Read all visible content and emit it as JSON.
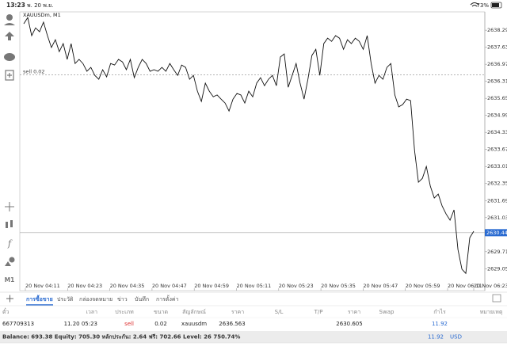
{
  "status_bar": {
    "time": "13:23",
    "date": "พ. 20 พ.ย.",
    "battery": "73%"
  },
  "chart_data": {
    "type": "line",
    "title": "XAUUSDm, M1",
    "xtick_labels": [
      "20 Nov 04:11",
      "20 Nov 04:23",
      "20 Nov 04:35",
      "20 Nov 04:47",
      "20 Nov 04:59",
      "20 Nov 05:11",
      "20 Nov 05:23",
      "20 Nov 05:35",
      "20 Nov 05:47",
      "20 Nov 05:59",
      "20 Nov 06:11",
      "20 Nov 06:23"
    ],
    "series": [
      {
        "name": "XAUUSDm",
        "color": "#111111",
        "values": [
          2638.54,
          2638.78,
          2638.08,
          2638.38,
          2638.23,
          2638.6,
          2638.08,
          2637.62,
          2637.92,
          2637.46,
          2637.77,
          2637.16,
          2637.77,
          2637.0,
          2637.16,
          2637.0,
          2636.7,
          2636.85,
          2636.54,
          2636.39,
          2636.76,
          2636.48,
          2637.0,
          2636.94,
          2637.16,
          2637.06,
          2636.76,
          2637.16,
          2636.45,
          2636.85,
          2637.16,
          2637.0,
          2636.7,
          2636.76,
          2636.7,
          2636.85,
          2636.7,
          2637.0,
          2636.76,
          2636.54,
          2636.94,
          2636.85,
          2636.39,
          2636.54,
          2635.93,
          2635.53,
          2636.24,
          2635.93,
          2635.71,
          2635.78,
          2635.62,
          2635.47,
          2635.16,
          2635.62,
          2635.84,
          2635.78,
          2635.47,
          2635.93,
          2635.71,
          2636.24,
          2636.45,
          2636.14,
          2636.39,
          2636.54,
          2636.14,
          2637.25,
          2637.37,
          2636.08,
          2636.54,
          2637.0,
          2636.24,
          2635.62,
          2636.39,
          2637.31,
          2637.55,
          2636.54,
          2637.77,
          2637.98,
          2637.86,
          2638.08,
          2637.98,
          2637.55,
          2637.92,
          2637.77,
          2637.98,
          2637.86,
          2637.55,
          2638.08,
          2637.0,
          2636.24,
          2636.54,
          2636.39,
          2636.85,
          2637.0,
          2635.78,
          2635.32,
          2635.41,
          2635.62,
          2635.56,
          2633.63,
          2632.4,
          2632.55,
          2633.01,
          2632.25,
          2631.79,
          2631.94,
          2631.48,
          2631.17,
          2630.93,
          2631.33,
          2629.79,
          2629.03,
          2628.87,
          2630.25,
          2630.5
        ]
      }
    ],
    "ylim": [
      2628.2,
      2639.0
    ],
    "yticks": [
      {
        "value": 2638.29,
        "label": "2638.290"
      },
      {
        "value": 2637.63,
        "label": "2637.630"
      },
      {
        "value": 2636.97,
        "label": "2636.970"
      },
      {
        "value": 2636.31,
        "label": "2636.310"
      },
      {
        "value": 2635.65,
        "label": "2635.650"
      },
      {
        "value": 2634.99,
        "label": "2634.990"
      },
      {
        "value": 2634.33,
        "label": "2634.330"
      },
      {
        "value": 2633.67,
        "label": "2633.670"
      },
      {
        "value": 2633.01,
        "label": "2633.010"
      },
      {
        "value": 2632.35,
        "label": "2632.350"
      },
      {
        "value": 2631.69,
        "label": "2631.690"
      },
      {
        "value": 2631.03,
        "label": "2631.030"
      },
      {
        "value": 2629.71,
        "label": "2629.710"
      },
      {
        "value": 2629.05,
        "label": "2629.050"
      }
    ],
    "current_price": 2630.445,
    "order_label": "sell 0.02",
    "grid": false,
    "timeframe": "M1"
  },
  "tabs": [
    "การซื้อขาย",
    "ประวัติ",
    "กล่องจดหมาย",
    "ข่าว",
    "บันทึก",
    "การตั้งค่า"
  ],
  "table": {
    "headers": [
      "ตั๋ว",
      "เวลา",
      "ประเภท",
      "ขนาด",
      "สัญลักษณ์",
      "ราคา",
      "S/L",
      "T/P",
      "ราคา",
      "Swap",
      "กำไร",
      "หมายเหตุ"
    ],
    "row": {
      "ticket": "667709313",
      "time": "11.20 05:23",
      "type": "sell",
      "volume": "0.02",
      "symbol": "xauusdm",
      "open_price": 2636.563,
      "price": 2630.605,
      "profit": 11.92
    }
  },
  "summary": {
    "text": "Balance: 693.38 Equity: 705.30 หลักประกัน: 2.64 ฟรี: 702.66 Level: 26 750.74%",
    "profit": "11.92",
    "currency": "USD"
  }
}
